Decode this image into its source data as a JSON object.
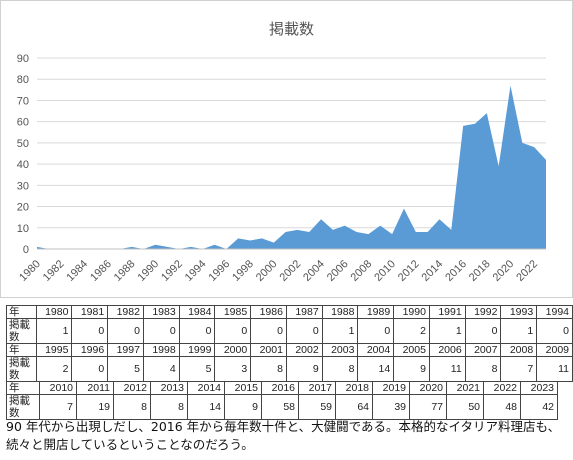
{
  "chart_data": {
    "type": "area",
    "title": "掲載数",
    "xlabel": "",
    "ylabel": "",
    "ylim": [
      0,
      90
    ],
    "yticks": [
      0,
      10,
      20,
      30,
      40,
      50,
      60,
      70,
      80,
      90
    ],
    "xtick_labels": [
      "1980",
      "1982",
      "1984",
      "1986",
      "1988",
      "1990",
      "1992",
      "1994",
      "1996",
      "1998",
      "2000",
      "2002",
      "2004",
      "2006",
      "2008",
      "2010",
      "2012",
      "2014",
      "2016",
      "2018",
      "2020",
      "2022"
    ],
    "grid": true,
    "color": "#5b9bd5",
    "x": [
      1980,
      1981,
      1982,
      1983,
      1984,
      1985,
      1986,
      1987,
      1988,
      1989,
      1990,
      1991,
      1992,
      1993,
      1994,
      1995,
      1996,
      1997,
      1998,
      1999,
      2000,
      2001,
      2002,
      2003,
      2004,
      2005,
      2006,
      2007,
      2008,
      2009,
      2010,
      2011,
      2012,
      2013,
      2014,
      2015,
      2016,
      2017,
      2018,
      2019,
      2020,
      2021,
      2022,
      2023
    ],
    "values": [
      1,
      0,
      0,
      0,
      0,
      0,
      0,
      0,
      1,
      0,
      2,
      1,
      0,
      1,
      0,
      2,
      0,
      5,
      4,
      5,
      3,
      8,
      9,
      8,
      14,
      9,
      11,
      8,
      7,
      11,
      7,
      19,
      8,
      8,
      14,
      9,
      58,
      59,
      64,
      39,
      77,
      50,
      48,
      42
    ]
  },
  "tables": [
    {
      "header_label": "年",
      "row_label": "掲載数",
      "years": [
        "1980",
        "1981",
        "1982",
        "1983",
        "1984",
        "1985",
        "1986",
        "1987",
        "1988",
        "1989",
        "1990",
        "1991",
        "1992",
        "1993",
        "1994"
      ],
      "counts": [
        "1",
        "0",
        "0",
        "0",
        "0",
        "0",
        "0",
        "0",
        "1",
        "0",
        "2",
        "1",
        "0",
        "1",
        "0"
      ]
    },
    {
      "header_label": "年",
      "row_label": "掲載数",
      "years": [
        "1995",
        "1996",
        "1997",
        "1998",
        "1999",
        "2000",
        "2001",
        "2002",
        "2003",
        "2004",
        "2005",
        "2006",
        "2007",
        "2008",
        "2009"
      ],
      "counts": [
        "2",
        "0",
        "5",
        "4",
        "5",
        "3",
        "8",
        "9",
        "8",
        "14",
        "9",
        "11",
        "8",
        "7",
        "11"
      ]
    },
    {
      "header_label": "年",
      "row_label": "掲載数",
      "years": [
        "2010",
        "2011",
        "2012",
        "2013",
        "2014",
        "2015",
        "2016",
        "2017",
        "2018",
        "2019",
        "2020",
        "2021",
        "2022",
        "2023"
      ],
      "counts": [
        "7",
        "19",
        "8",
        "8",
        "14",
        "9",
        "58",
        "59",
        "64",
        "39",
        "77",
        "50",
        "48",
        "42"
      ]
    }
  ],
  "caption": {
    "line1": "90 年代から出現しだし、2016 年から毎年数十件と、大健闘である。本格的なイタリア料理店も、",
    "line2": "続々と開店しているということなのだろう。"
  }
}
